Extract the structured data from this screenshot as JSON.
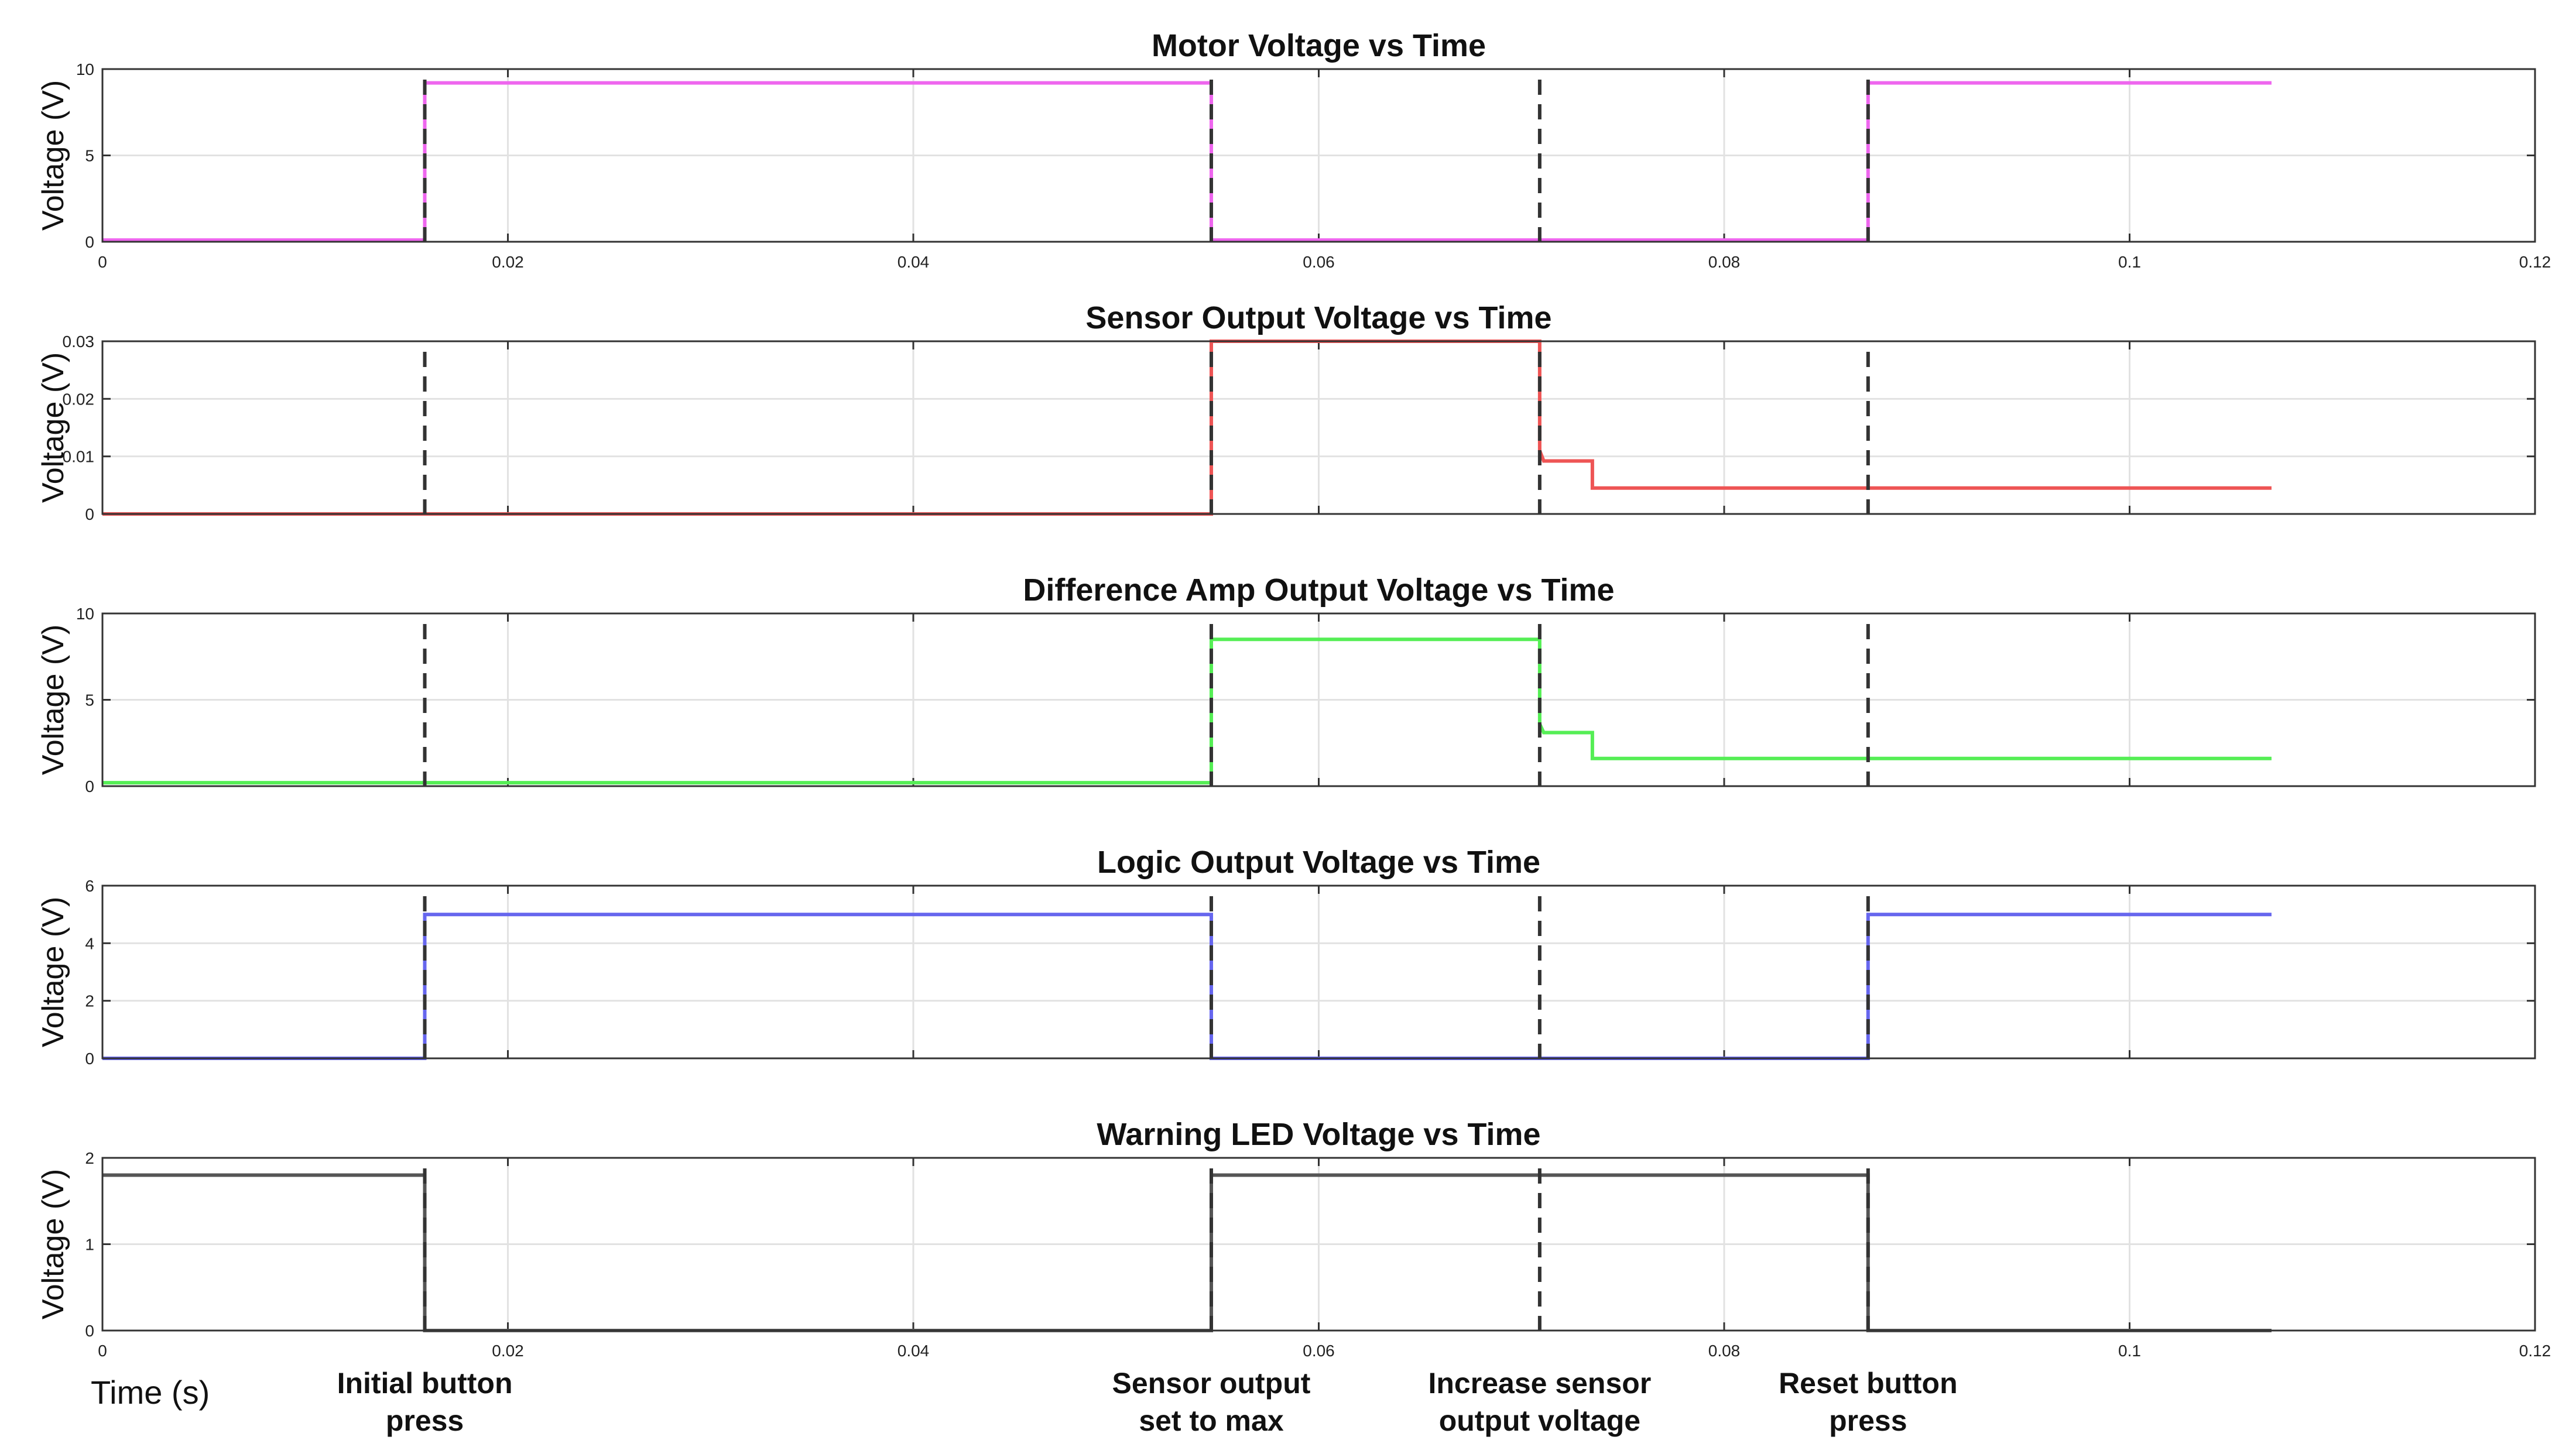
{
  "chart_data": {
    "type": "line",
    "xlabel": "Time (s)",
    "xlim": [
      0,
      0.12
    ],
    "x_ticks": [
      0,
      0.02,
      0.04,
      0.06,
      0.08,
      0.1,
      0.12
    ],
    "x_tick_labels": [
      "0",
      "0.02",
      "0.04",
      "0.06",
      "0.08",
      "0.1",
      "0.12"
    ],
    "grid": true,
    "events": [
      {
        "x": 0.0159,
        "label_lines": [
          "Initial button",
          "press"
        ]
      },
      {
        "x": 0.0547,
        "label_lines": [
          "Sensor output",
          "set to max"
        ]
      },
      {
        "x": 0.0709,
        "label_lines": [
          "Increase sensor",
          "output voltage"
        ]
      },
      {
        "x": 0.0871,
        "label_lines": [
          "Reset button",
          "press"
        ]
      }
    ],
    "panels": [
      {
        "title": "Motor Voltage vs Time",
        "ylabel": "Voltage (V)",
        "ylim": [
          0,
          10
        ],
        "y_ticks": [
          0,
          5,
          10
        ],
        "y_tick_labels": [
          "0",
          "5",
          "10"
        ],
        "show_x_tick_labels": true,
        "color": "#ee66ee",
        "x": [
          0,
          0.0159,
          0.0159,
          0.0547,
          0.0547,
          0.0871,
          0.0871,
          0.107
        ],
        "y": [
          0.1,
          0.1,
          9.2,
          9.2,
          0.1,
          0.1,
          9.2,
          9.2
        ]
      },
      {
        "title": "Sensor Output Voltage vs Time",
        "ylabel": "Voltage (V)",
        "ylim": [
          0,
          0.03
        ],
        "y_ticks": [
          0,
          0.01,
          0.02,
          0.03
        ],
        "y_tick_labels": [
          "0",
          "0.01",
          "0.02",
          "0.03"
        ],
        "show_x_tick_labels": false,
        "color": "#ee5555",
        "x": [
          0,
          0.0547,
          0.0547,
          0.0709,
          0.0709,
          0.0711,
          0.0735,
          0.0735,
          0.107
        ],
        "y": [
          0,
          0,
          0.03,
          0.03,
          0.011,
          0.0092,
          0.0092,
          0.0045,
          0.0045
        ]
      },
      {
        "title": "Difference Amp Output Voltage vs Time",
        "ylabel": "Voltage (V)",
        "ylim": [
          0,
          10
        ],
        "y_ticks": [
          0,
          5,
          10
        ],
        "y_tick_labels": [
          "0",
          "5",
          "10"
        ],
        "show_x_tick_labels": false,
        "color": "#55ee55",
        "x": [
          0,
          0.0547,
          0.0547,
          0.0709,
          0.0709,
          0.0711,
          0.0735,
          0.0735,
          0.107
        ],
        "y": [
          0.2,
          0.2,
          8.5,
          8.5,
          3.6,
          3.1,
          3.1,
          1.6,
          1.6
        ]
      },
      {
        "title": "Logic Output Voltage vs Time",
        "ylabel": "Voltage (V)",
        "ylim": [
          0,
          6
        ],
        "y_ticks": [
          0,
          2,
          4,
          6
        ],
        "y_tick_labels": [
          "0",
          "2",
          "4",
          "6"
        ],
        "show_x_tick_labels": false,
        "color": "#6666ee",
        "x": [
          0,
          0.0159,
          0.0159,
          0.0547,
          0.0547,
          0.0871,
          0.0871,
          0.107
        ],
        "y": [
          0,
          0,
          5,
          5,
          0,
          0,
          5,
          5
        ]
      },
      {
        "title": "Warning LED Voltage vs Time",
        "ylabel": "Voltage (V)",
        "ylim": [
          0,
          2
        ],
        "y_ticks": [
          0,
          1,
          2
        ],
        "y_tick_labels": [
          "0",
          "1",
          "2"
        ],
        "show_x_tick_labels": true,
        "color": "#555555",
        "x": [
          0,
          0.0159,
          0.0159,
          0.0547,
          0.0547,
          0.0871,
          0.0871,
          0.107
        ],
        "y": [
          1.8,
          1.8,
          0,
          0,
          1.8,
          1.8,
          0,
          0
        ]
      }
    ]
  }
}
